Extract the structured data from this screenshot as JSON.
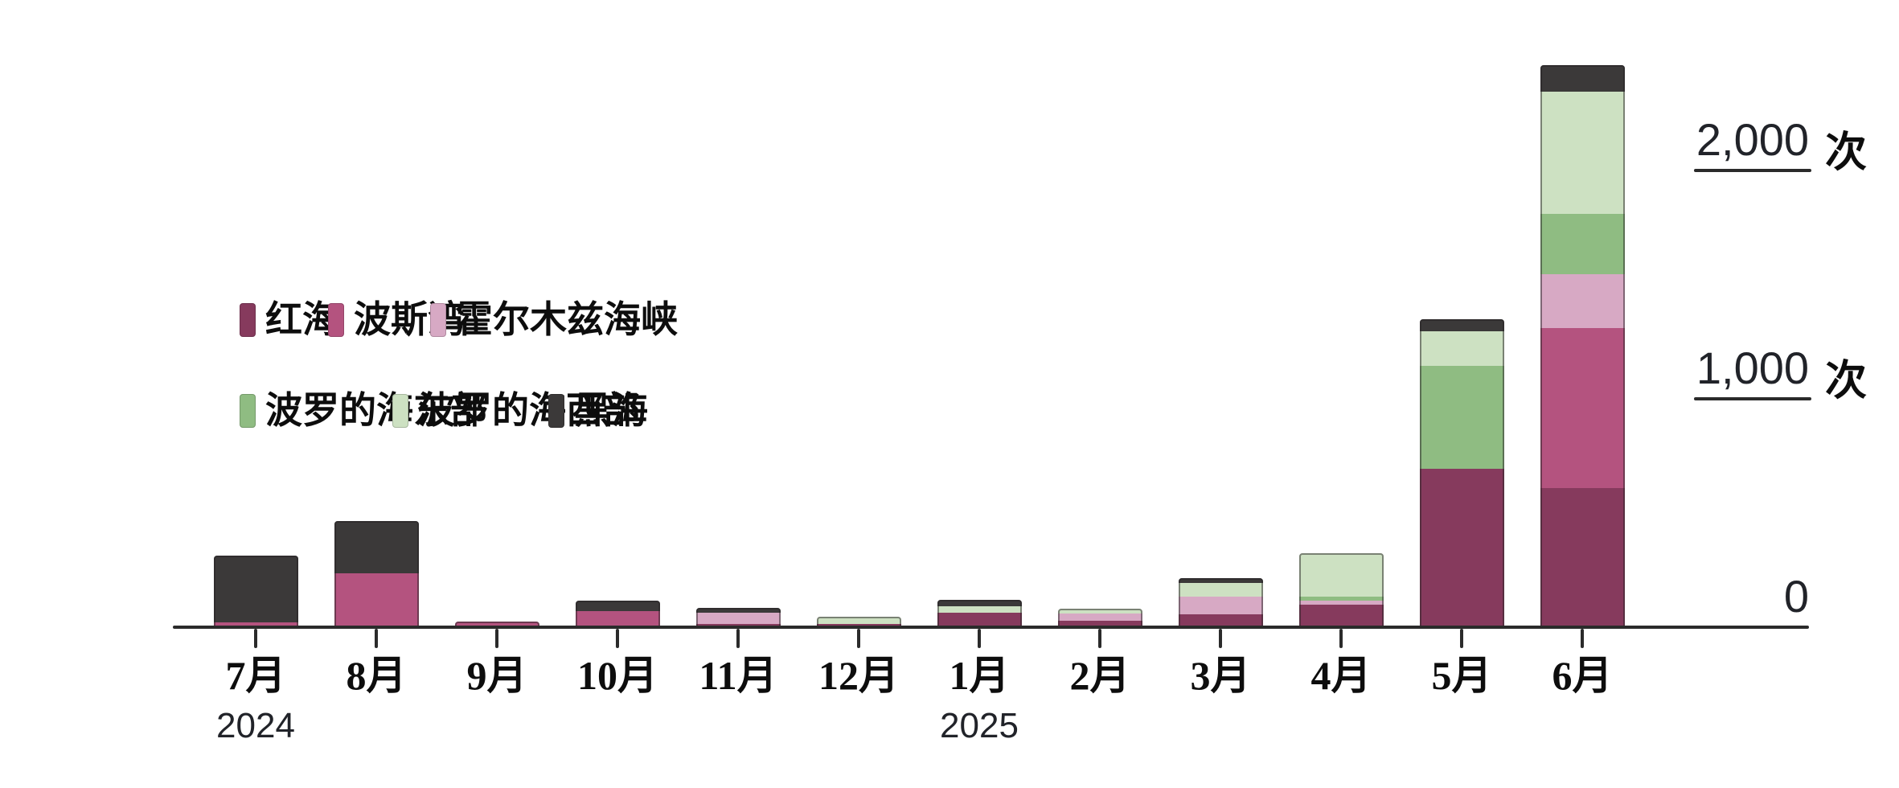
{
  "chart_data": {
    "type": "bar",
    "stacked": true,
    "title": "",
    "value_unit": "次",
    "categories": [
      "7月",
      "8月",
      "9月",
      "10月",
      "11月",
      "12月",
      "1月",
      "2月",
      "3月",
      "4月",
      "5月",
      "6月"
    ],
    "year_markers": [
      {
        "label": "2024",
        "category_index": 0
      },
      {
        "label": "2025",
        "category_index": 6
      }
    ],
    "series": [
      {
        "name": "红海",
        "color": "#863a5d",
        "values": [
          0,
          0,
          0,
          0,
          15,
          15,
          65,
          30,
          55,
          100,
          695,
          610
        ]
      },
      {
        "name": "波斯湾",
        "color": "#b4537f",
        "values": [
          20,
          235,
          25,
          70,
          0,
          0,
          0,
          0,
          0,
          0,
          0,
          700
        ]
      },
      {
        "name": "霍尔木兹海峡",
        "color": "#d7a9c4",
        "values": [
          0,
          0,
          0,
          0,
          50,
          0,
          0,
          30,
          80,
          15,
          0,
          235
        ]
      },
      {
        "name": "波罗的海东部",
        "color": "#8fbc82",
        "values": [
          0,
          0,
          0,
          0,
          0,
          0,
          0,
          0,
          0,
          20,
          450,
          265
        ]
      },
      {
        "name": "波罗的海西部",
        "color": "#cde1c2",
        "values": [
          0,
          0,
          0,
          0,
          0,
          30,
          25,
          20,
          60,
          190,
          150,
          535
        ]
      },
      {
        "name": "黑海",
        "color": "#3b3939",
        "values": [
          295,
          230,
          0,
          45,
          18,
          0,
          30,
          0,
          20,
          0,
          55,
          115
        ]
      }
    ],
    "totals": [
      315,
      465,
      25,
      115,
      83,
      45,
      120,
      80,
      215,
      325,
      1350,
      2460
    ],
    "y_ticks": [
      {
        "value": 2000,
        "label": "2,000",
        "unit": "次",
        "line": true
      },
      {
        "value": 1000,
        "label": "1,000",
        "unit": "次",
        "line": true
      },
      {
        "value": 0,
        "label": "0",
        "unit": "",
        "line": false
      }
    ],
    "ylim": [
      0,
      2470
    ],
    "grid": false,
    "legend_position": "upper-left-inside",
    "legend_rows": [
      [
        "红海",
        "波斯湾",
        "霍尔木兹海峡"
      ],
      [
        "波罗的海东部",
        "波罗的海西部",
        "黑海"
      ]
    ]
  },
  "colors": {
    "axis": "#2b2b2b",
    "cjk_text": "#0d0d0d",
    "number_text": "#212329",
    "background": "#ffffff"
  }
}
